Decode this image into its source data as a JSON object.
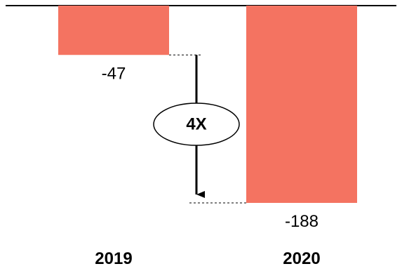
{
  "colors": {
    "bar": "#f47361",
    "axis": "#000000",
    "text": "#000000"
  },
  "chart_data": {
    "type": "bar",
    "categories": [
      "2019",
      "2020"
    ],
    "values": [
      -47,
      -188
    ],
    "value_labels": [
      "-47",
      "-188"
    ],
    "ylim": [
      -188,
      0
    ],
    "grid": false,
    "annotations": [
      {
        "type": "ratio-arrow",
        "label": "4X",
        "from_category": "2019",
        "to_category": "2020"
      }
    ]
  }
}
